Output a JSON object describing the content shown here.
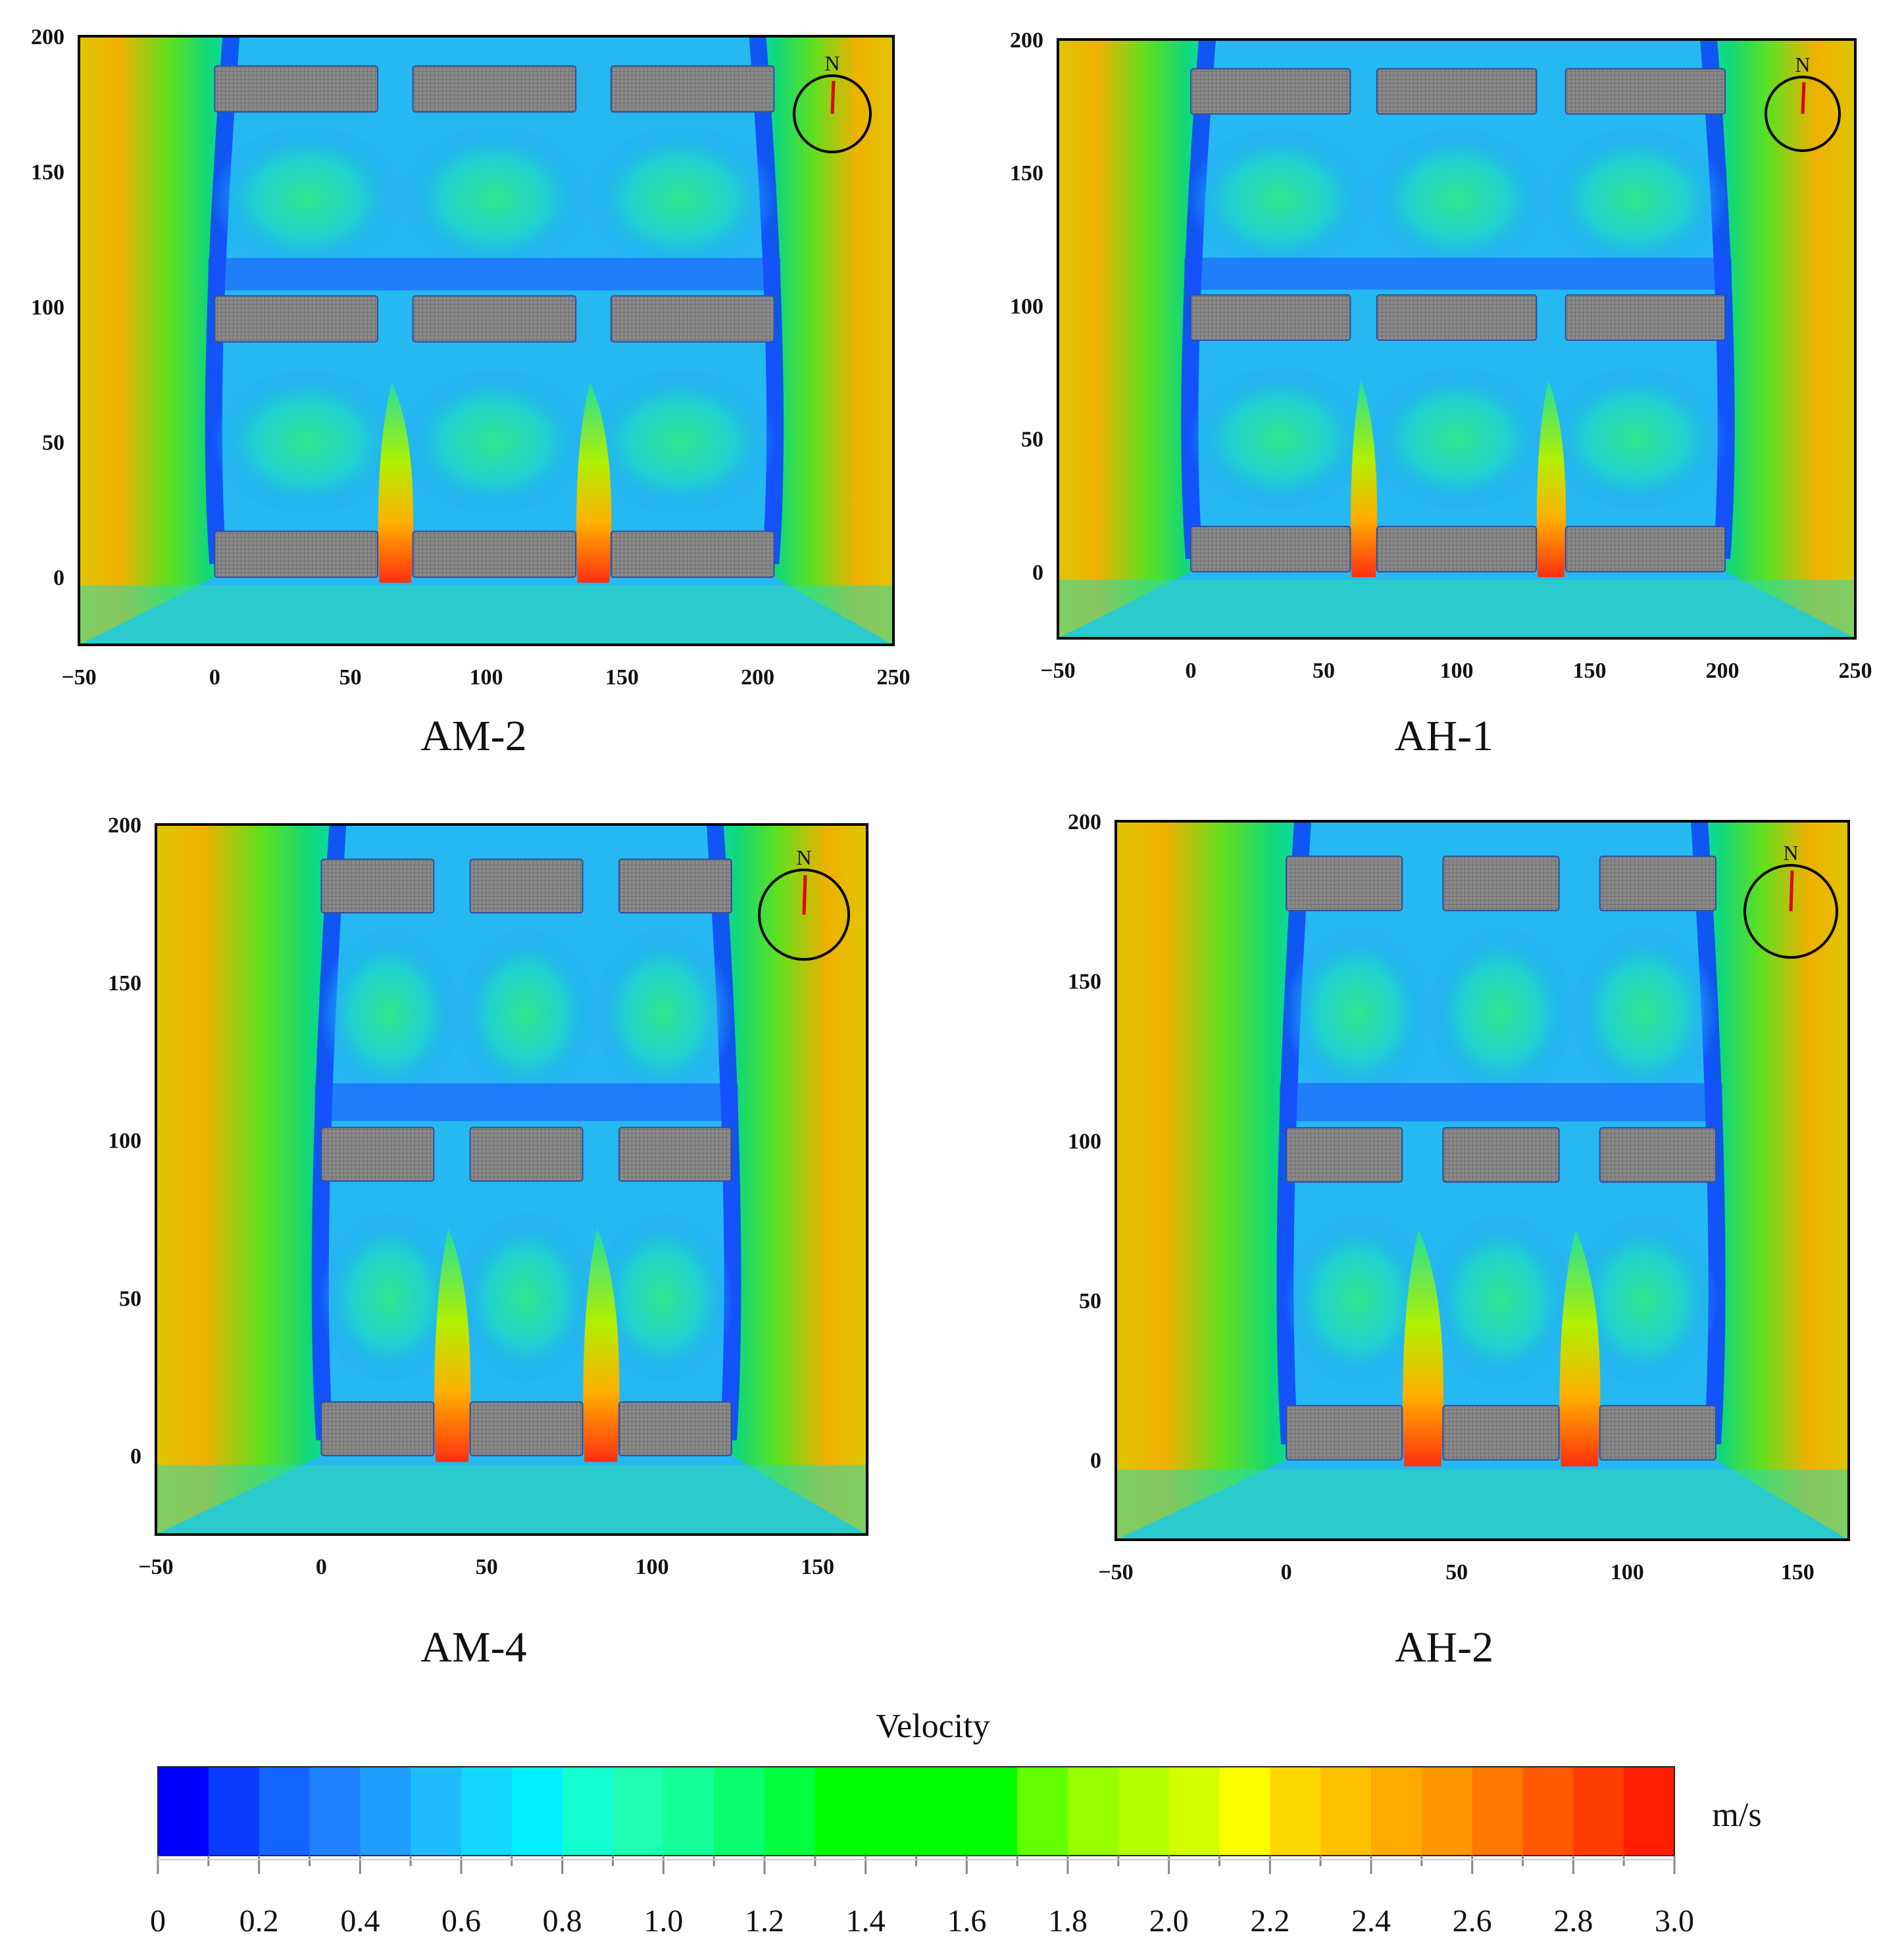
{
  "chart_data": [
    {
      "type": "heatmap",
      "caption": "AM-2",
      "x_ticks": [
        "−50",
        "0",
        "50",
        "100",
        "150",
        "200",
        "250"
      ],
      "y_ticks": [
        "0",
        "50",
        "100",
        "150",
        "200"
      ],
      "xlim": [
        -50,
        250
      ],
      "ylim": [
        -25,
        200
      ],
      "buildings": [
        {
          "x": [
            0,
            60
          ],
          "y": [
            0,
            17
          ]
        },
        {
          "x": [
            73,
            133
          ],
          "y": [
            0,
            17
          ]
        },
        {
          "x": [
            146,
            206
          ],
          "y": [
            0,
            17
          ]
        },
        {
          "x": [
            0,
            60
          ],
          "y": [
            87,
            104
          ]
        },
        {
          "x": [
            73,
            133
          ],
          "y": [
            87,
            104
          ]
        },
        {
          "x": [
            146,
            206
          ],
          "y": [
            87,
            104
          ]
        },
        {
          "x": [
            0,
            60
          ],
          "y": [
            172,
            189
          ]
        },
        {
          "x": [
            73,
            133
          ],
          "y": [
            172,
            189
          ]
        },
        {
          "x": [
            146,
            206
          ],
          "y": [
            172,
            189
          ]
        }
      ],
      "north_label": "N"
    },
    {
      "type": "heatmap",
      "caption": "AH-1",
      "x_ticks": [
        "−50",
        "0",
        "50",
        "100",
        "150",
        "200",
        "250"
      ],
      "y_ticks": [
        "0",
        "50",
        "100",
        "150",
        "200"
      ],
      "xlim": [
        -50,
        250
      ],
      "ylim": [
        -25,
        200
      ],
      "buildings": [
        {
          "x": [
            0,
            60
          ],
          "y": [
            0,
            17
          ]
        },
        {
          "x": [
            70,
            130
          ],
          "y": [
            0,
            17
          ]
        },
        {
          "x": [
            141,
            201
          ],
          "y": [
            0,
            17
          ]
        },
        {
          "x": [
            0,
            60
          ],
          "y": [
            87,
            104
          ]
        },
        {
          "x": [
            70,
            130
          ],
          "y": [
            87,
            104
          ]
        },
        {
          "x": [
            141,
            201
          ],
          "y": [
            87,
            104
          ]
        },
        {
          "x": [
            0,
            60
          ],
          "y": [
            172,
            189
          ]
        },
        {
          "x": [
            70,
            130
          ],
          "y": [
            172,
            189
          ]
        },
        {
          "x": [
            141,
            201
          ],
          "y": [
            172,
            189
          ]
        }
      ],
      "north_label": "N"
    },
    {
      "type": "heatmap",
      "caption": "AM-4",
      "x_ticks": [
        "−50",
        "0",
        "50",
        "100",
        "150"
      ],
      "y_ticks": [
        "0",
        "50",
        "100",
        "150",
        "200"
      ],
      "xlim": [
        -50,
        165
      ],
      "ylim": [
        -25,
        200
      ],
      "buildings": [
        {
          "x": [
            0,
            34
          ],
          "y": [
            0,
            17
          ]
        },
        {
          "x": [
            45,
            79
          ],
          "y": [
            0,
            17
          ]
        },
        {
          "x": [
            90,
            124
          ],
          "y": [
            0,
            17
          ]
        },
        {
          "x": [
            0,
            34
          ],
          "y": [
            87,
            104
          ]
        },
        {
          "x": [
            45,
            79
          ],
          "y": [
            87,
            104
          ]
        },
        {
          "x": [
            90,
            124
          ],
          "y": [
            87,
            104
          ]
        },
        {
          "x": [
            0,
            34
          ],
          "y": [
            172,
            189
          ]
        },
        {
          "x": [
            45,
            79
          ],
          "y": [
            172,
            189
          ]
        },
        {
          "x": [
            90,
            124
          ],
          "y": [
            172,
            189
          ]
        }
      ],
      "north_label": "N"
    },
    {
      "type": "heatmap",
      "caption": "AH-2",
      "x_ticks": [
        "−50",
        "0",
        "50",
        "100",
        "150"
      ],
      "y_ticks": [
        "0",
        "50",
        "100",
        "150",
        "200"
      ],
      "xlim": [
        -50,
        165
      ],
      "ylim": [
        -25,
        200
      ],
      "buildings": [
        {
          "x": [
            0,
            34
          ],
          "y": [
            0,
            17
          ]
        },
        {
          "x": [
            46,
            80
          ],
          "y": [
            0,
            17
          ]
        },
        {
          "x": [
            92,
            126
          ],
          "y": [
            0,
            17
          ]
        },
        {
          "x": [
            0,
            34
          ],
          "y": [
            87,
            104
          ]
        },
        {
          "x": [
            46,
            80
          ],
          "y": [
            87,
            104
          ]
        },
        {
          "x": [
            92,
            126
          ],
          "y": [
            87,
            104
          ]
        },
        {
          "x": [
            0,
            34
          ],
          "y": [
            172,
            189
          ]
        },
        {
          "x": [
            46,
            80
          ],
          "y": [
            172,
            189
          ]
        },
        {
          "x": [
            92,
            126
          ],
          "y": [
            172,
            189
          ]
        }
      ],
      "north_label": "N"
    }
  ],
  "colorbar": {
    "title": "Velocity",
    "unit": "m/s",
    "min": 0,
    "max": 3.0,
    "ticks": [
      "0",
      "0.2",
      "0.4",
      "0.6",
      "0.8",
      "1.0",
      "1.2",
      "1.4",
      "1.6",
      "1.8",
      "2.0",
      "2.2",
      "2.4",
      "2.6",
      "2.8",
      "3.0"
    ],
    "colors": [
      "#0000ff",
      "#0a3cff",
      "#1464ff",
      "#1e82ff",
      "#1e9eff",
      "#1ebcff",
      "#14d8ff",
      "#00f0ff",
      "#14ffd2",
      "#1effb4",
      "#14ff96",
      "#0aff6e",
      "#00ff3c",
      "#00ff00",
      "#00ff00",
      "#00ff00",
      "#00ff00",
      "#64ff00",
      "#96ff00",
      "#b4ff00",
      "#d2ff00",
      "#ffff00",
      "#ffd700",
      "#ffc000",
      "#ffaa00",
      "#ff9600",
      "#ff7800",
      "#ff5a00",
      "#ff3c00",
      "#ff1e00"
    ]
  }
}
